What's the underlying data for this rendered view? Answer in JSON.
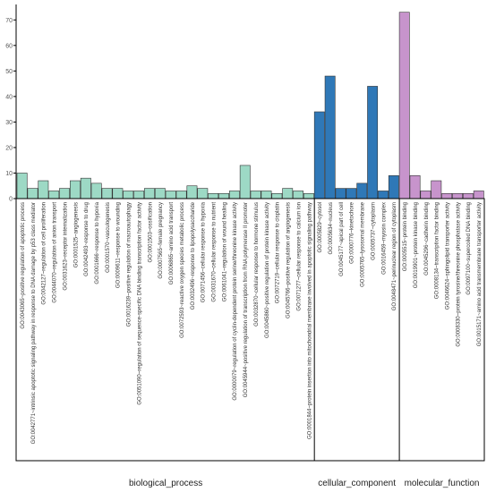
{
  "chart_data": {
    "type": "bar",
    "ylim": [
      0,
      75
    ],
    "yticks": [
      0,
      10,
      20,
      30,
      40,
      50,
      60,
      70
    ],
    "grid": false,
    "legend": "none",
    "groups": [
      {
        "name": "biological_process",
        "color": "#9dd9c5",
        "categories": [
          "GO:0043065~positive regulation of apoptotic process",
          "GO:0042771~intrinsic apoptotic signaling pathway in response to DNA damage by p53 class mediator",
          "GO:0042127~regulation of cell proliferation",
          "GO:0044070~regulation of anion transport",
          "GO:0031623~receptor internalization",
          "GO:0001525~angiogenesis",
          "GO:0042493~response to drug",
          "GO:0001666~response to hypoxia",
          "GO:0001570~vasculogenesis",
          "GO:0009611~response to wounding",
          "GO:0016239~positive regulation of macroautophagy",
          "GO:0051090~regulation of sequence-specific DNA binding transcription factor activity",
          "GO:0001503~ossification",
          "GO:0007565~female pregnancy",
          "GO:0006865~amino acid transport",
          "GO:0072593~reactive oxygen species metabolic process",
          "GO:0032496~response to lipopolysaccharide",
          "GO:0071456~cellular response to hypoxia",
          "GO:0031670~cellular response to nutrient",
          "GO:0061041~regulation of wound healing",
          "GO:0000079~regulation of cyclin-dependent protein serine/threonine kinase activity",
          "GO:0045944~positive regulation of transcription from RNA polymerase II promoter",
          "GO:0032870~cellular response to hormone stimulus",
          "GO:0045860~positive regulation of protein kinase activity",
          "GO:0072719~cellular response to cisplatin",
          "GO:0045766~positive regulation of angiogenesis",
          "GO:0071277~cellular response to calcium ion",
          "GO:0001844~protein insertion into mitochondrial membrane involved in apoptotic signaling pathway"
        ],
        "values": [
          10,
          4,
          7,
          3,
          4,
          7,
          8,
          6,
          4,
          4,
          3,
          3,
          4,
          4,
          3,
          3,
          5,
          4,
          2,
          2,
          3,
          13,
          3,
          3,
          2,
          4,
          3,
          2
        ]
      },
      {
        "name": "cellular_component",
        "color": "#2f78b7",
        "categories": [
          "GO:0005829~cytosol",
          "GO:0005634~nucleus",
          "GO:0045177~apical part of cell",
          "GO:0000776~kinetochore",
          "GO:0005765~lysosomal membrane",
          "GO:0005737~cytoplasm",
          "GO:0016459~myosin complex",
          "GO:0048471~perinuclear region of cytoplasm"
        ],
        "values": [
          34,
          48,
          4,
          4,
          6,
          44,
          3,
          9
        ]
      },
      {
        "name": "molecular_function",
        "color": "#c794cc",
        "categories": [
          "GO:0005515~protein binding",
          "GO:0019901~protein kinase binding",
          "GO:0045296~cadherin binding",
          "GO:0008134~transcription factor binding",
          "GO:0046624~sphingolipid transporter activity",
          "GO:0008330~protein tyrosine/threonine phosphatase activity",
          "GO:0097100~supercoiled DNA binding",
          "GO:0015171~amino acid transmembrane transporter activity"
        ],
        "values": [
          73,
          9,
          3,
          7,
          2,
          2,
          2,
          3
        ]
      }
    ]
  }
}
